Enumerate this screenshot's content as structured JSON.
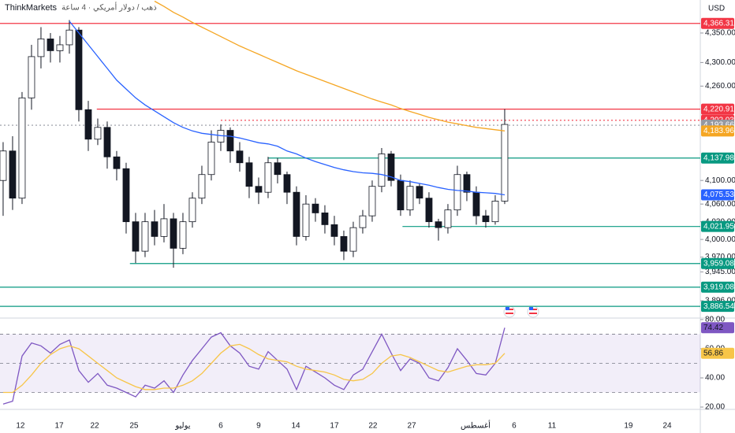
{
  "header": {
    "broker": "ThinkMarkets",
    "symbol": "ذهب / دولار أمريكي · 4 ساعة"
  },
  "chart_data": [
    {
      "type": "candlestick",
      "currency": "USD",
      "xlim": [
        -0.33,
        73.67
      ],
      "xticks": [
        {
          "value": 1.83,
          "label": "12"
        },
        {
          "value": 5.92,
          "label": "17"
        },
        {
          "value": 9.67,
          "label": "22"
        },
        {
          "value": 13.83,
          "label": "25"
        },
        {
          "value": 19,
          "label": "يوليو"
        },
        {
          "value": 23,
          "label": "6"
        },
        {
          "value": 27,
          "label": "9"
        },
        {
          "value": 30.92,
          "label": "14"
        },
        {
          "value": 35,
          "label": "17"
        },
        {
          "value": 39.08,
          "label": "22"
        },
        {
          "value": 43.17,
          "label": "27"
        },
        {
          "value": 49.92,
          "label": "أغسطس"
        },
        {
          "value": 54,
          "label": "6"
        },
        {
          "value": 58,
          "label": "11"
        },
        {
          "value": 66.08,
          "label": "19"
        },
        {
          "value": 70.17,
          "label": "24"
        }
      ],
      "ylim": [
        3868,
        4406
      ],
      "yticks": [
        {
          "value": 4350,
          "label": "4,350.00"
        },
        {
          "value": 4300,
          "label": "4,300.00"
        },
        {
          "value": 4260,
          "label": "4,260.00"
        },
        {
          "value": 4100,
          "label": "4,100.00"
        },
        {
          "value": 4060,
          "label": "4,060.00"
        },
        {
          "value": 4030,
          "label": "4,030.00"
        },
        {
          "value": 4000,
          "label": "4,000.00"
        },
        {
          "value": 3970,
          "label": "3,970.00"
        },
        {
          "value": 3945,
          "label": "3,945.00"
        },
        {
          "value": 3896,
          "label": "3,896.00"
        }
      ],
      "candles": [
        [
          4100,
          4165,
          4040,
          4150
        ],
        [
          4150,
          4175,
          4050,
          4070
        ],
        [
          4070,
          4250,
          4060,
          4240
        ],
        [
          4240,
          4330,
          4220,
          4310
        ],
        [
          4310,
          4360,
          4290,
          4340
        ],
        [
          4340,
          4350,
          4300,
          4320
        ],
        [
          4320,
          4345,
          4300,
          4330
        ],
        [
          4330,
          4372,
          4315,
          4355
        ],
        [
          4355,
          4360,
          4200,
          4220
        ],
        [
          4220,
          4235,
          4150,
          4170
        ],
        [
          4170,
          4205,
          4160,
          4190
        ],
        [
          4190,
          4200,
          4120,
          4140
        ],
        [
          4140,
          4150,
          4100,
          4120
        ],
        [
          4120,
          4130,
          4010,
          4030
        ],
        [
          4030,
          4045,
          3960,
          3980
        ],
        [
          3980,
          4045,
          3970,
          4030
        ],
        [
          4030,
          4050,
          3990,
          4005
        ],
        [
          4005,
          4060,
          3995,
          4035
        ],
        [
          4035,
          4045,
          3952,
          3985
        ],
        [
          3985,
          4045,
          3975,
          4030
        ],
        [
          4030,
          4080,
          4020,
          4070
        ],
        [
          4070,
          4125,
          4060,
          4110
        ],
        [
          4110,
          4185,
          4100,
          4165
        ],
        [
          4165,
          4195,
          4150,
          4185
        ],
        [
          4185,
          4190,
          4130,
          4150
        ],
        [
          4150,
          4165,
          4115,
          4130
        ],
        [
          4130,
          4140,
          4070,
          4090
        ],
        [
          4090,
          4105,
          4060,
          4080
        ],
        [
          4080,
          4140,
          4070,
          4130
        ],
        [
          4130,
          4138,
          4095,
          4110
        ],
        [
          4110,
          4115,
          4060,
          4080
        ],
        [
          4080,
          4090,
          3990,
          4005
        ],
        [
          4005,
          4075,
          3998,
          4060
        ],
        [
          4060,
          4070,
          4030,
          4045
        ],
        [
          4045,
          4058,
          4010,
          4025
        ],
        [
          4025,
          4040,
          3990,
          4005
        ],
        [
          4005,
          4015,
          3965,
          3980
        ],
        [
          3980,
          4030,
          3970,
          4020
        ],
        [
          4020,
          4050,
          4010,
          4040
        ],
        [
          4040,
          4100,
          4030,
          4090
        ],
        [
          4090,
          4155,
          4080,
          4145
        ],
        [
          4145,
          4150,
          4090,
          4100
        ],
        [
          4100,
          4110,
          4040,
          4050
        ],
        [
          4050,
          4100,
          4040,
          4090
        ],
        [
          4090,
          4095,
          4060,
          4070
        ],
        [
          4070,
          4080,
          4020,
          4030
        ],
        [
          4030,
          4035,
          3998,
          4020
        ],
        [
          4020,
          4060,
          4010,
          4050
        ],
        [
          4050,
          4125,
          4040,
          4110
        ],
        [
          4110,
          4115,
          4065,
          4080
        ],
        [
          4080,
          4090,
          4025,
          4040
        ],
        [
          4040,
          4050,
          4020,
          4030
        ],
        [
          4030,
          4075,
          4025,
          4065
        ],
        [
          4065,
          4221,
          4060,
          4195
        ]
      ],
      "up_color": "#ffffff",
      "down_color": "#131722",
      "outline_color": "#131722",
      "series": [
        {
          "color": "#2962ff",
          "last_label": "4,075.53",
          "values": [
            null,
            null,
            null,
            null,
            null,
            null,
            null,
            4370,
            4350,
            4330,
            4310,
            4290,
            4270,
            4255,
            4240,
            4228,
            4218,
            4208,
            4198,
            4190,
            4184,
            4180,
            4178,
            4176,
            4175,
            4172,
            4168,
            4164,
            4162,
            4158,
            4150,
            4145,
            4138,
            4132,
            4127,
            4122,
            4118,
            4115,
            4113,
            4112,
            4110,
            4106,
            4100,
            4098,
            4095,
            4092,
            4088,
            4085,
            4083,
            4082,
            4080,
            4079,
            4078,
            4075.53
          ]
        },
        {
          "color": "#f5a623",
          "last_label": "4,183.96",
          "values": [
            null,
            null,
            null,
            null,
            null,
            null,
            null,
            null,
            null,
            null,
            null,
            null,
            null,
            null,
            null,
            null,
            4404,
            4395,
            4385,
            4377,
            4368,
            4360,
            4352,
            4344,
            4336,
            4328,
            4321,
            4314,
            4307,
            4300,
            4293,
            4286,
            4280,
            4274,
            4268,
            4262,
            4256,
            4250,
            4244,
            4238,
            4233,
            4228,
            4222,
            4217,
            4212,
            4207,
            4203,
            4199,
            4196,
            4193,
            4190,
            4188,
            4186,
            4183.96
          ]
        }
      ],
      "levels": [
        {
          "value": 4366.31,
          "label": "4,366.31",
          "color": "#f23645",
          "style": "solid"
        },
        {
          "value": 4220.91,
          "label": "4,220.91",
          "color": "#f23645",
          "style": "solid",
          "from": 9.9
        },
        {
          "value": 4202.03,
          "label": "4,202.03",
          "color": "#f23645",
          "style": "dotted",
          "from": 23
        },
        {
          "value": 4193.66,
          "label": "4,193.66",
          "color": "#9598a1",
          "style": "dotted"
        },
        {
          "value": 4137.98,
          "label": "4,137.98",
          "color": "#089981",
          "style": "solid",
          "from": 28
        },
        {
          "value": 4021.95,
          "label": "4,021.95",
          "color": "#089981",
          "style": "solid",
          "from": 42.2
        },
        {
          "value": 3959.08,
          "label": "3,959.08",
          "color": "#089981",
          "style": "solid",
          "from": 13.4
        },
        {
          "value": 3919.08,
          "label": "3,919.08",
          "color": "#089981",
          "style": "solid"
        },
        {
          "value": 3886.54,
          "label": "3,886.54",
          "color": "#089981",
          "style": "solid"
        }
      ]
    },
    {
      "type": "line",
      "ylim": [
        18.4,
        80.5
      ],
      "yticks": [
        {
          "value": 80,
          "label": "80.00"
        },
        {
          "value": 60,
          "label": "60.00"
        },
        {
          "value": 40,
          "label": "40.00"
        },
        {
          "value": 20,
          "label": "20.00"
        }
      ],
      "band": [
        30,
        70
      ],
      "guides": [
        70,
        50,
        30
      ],
      "series": [
        {
          "color": "#7e57c2",
          "last_label": "74.42",
          "values": [
            22,
            24,
            55,
            64,
            62,
            57,
            63,
            66,
            45,
            37,
            43,
            35,
            33,
            30,
            27,
            35,
            33,
            38,
            30,
            42,
            52,
            60,
            68,
            71,
            62,
            57,
            48,
            46,
            58,
            52,
            46,
            32,
            48,
            44,
            40,
            35,
            32,
            42,
            46,
            58,
            70,
            57,
            45,
            53,
            50,
            40,
            38,
            47,
            60,
            52,
            43,
            42,
            50,
            74.42
          ]
        },
        {
          "color": "#f7c548",
          "last_label": "56.86",
          "values": [
            30,
            30,
            35,
            42,
            50,
            56,
            60,
            62,
            60,
            55,
            50,
            45,
            40,
            37,
            34,
            32,
            32,
            33,
            33,
            35,
            38,
            43,
            50,
            57,
            62,
            63,
            60,
            56,
            53,
            52,
            51,
            48,
            46,
            45,
            44,
            42,
            39,
            38,
            39,
            43,
            50,
            55,
            56,
            54,
            51,
            48,
            45,
            44,
            46,
            48,
            49,
            49,
            50,
            56.86
          ]
        }
      ]
    }
  ]
}
